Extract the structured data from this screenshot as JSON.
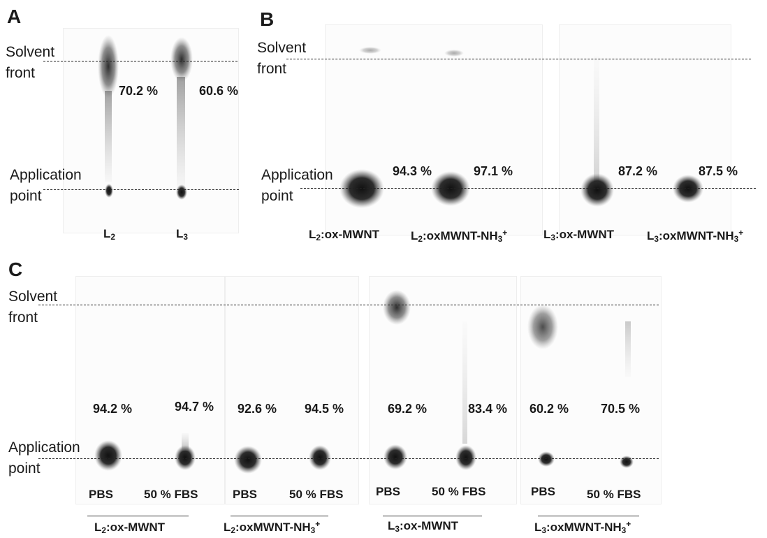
{
  "panels": {
    "A": {
      "letter": "A",
      "solvent": [
        "Solvent",
        "front"
      ],
      "application": [
        "Application",
        "point"
      ],
      "percents": [
        "70.2 %",
        "60.6 %"
      ],
      "lanes": [
        {
          "base": "L",
          "sub": "2",
          "rest": ""
        },
        {
          "base": "L",
          "sub": "3",
          "rest": ""
        }
      ]
    },
    "B": {
      "letter": "B",
      "solvent": [
        "Solvent",
        "front"
      ],
      "application": [
        "Application",
        "point"
      ],
      "percents": [
        "94.3 %",
        "97.1 %",
        "87.2 %",
        "87.5 %"
      ],
      "lanes": [
        {
          "base": "L",
          "sub": "2",
          "rest": ":ox-MWNT",
          "sup": ""
        },
        {
          "base": "L",
          "sub": "2",
          "rest": ":oxMWNT-NH",
          "sub2": "3",
          "sup": "+"
        },
        {
          "base": "L",
          "sub": "3",
          "rest": ":ox-MWNT",
          "sup": ""
        },
        {
          "base": "L",
          "sub": "3",
          "rest": ":oxMWNT-NH",
          "sub2": "3",
          "sup": "+"
        }
      ]
    },
    "C": {
      "letter": "C",
      "solvent": [
        "Solvent",
        "front"
      ],
      "application": [
        "Application",
        "point"
      ],
      "percents": [
        "94.2 %",
        "94.7 %",
        "92.6 %",
        "94.5 %",
        "69.2 %",
        "83.4 %",
        "60.2 %",
        "70.5 %"
      ],
      "conditions": [
        "PBS",
        "50 % FBS",
        "PBS",
        "50 % FBS",
        "PBS",
        "50 % FBS",
        "PBS",
        "50 % FBS"
      ],
      "groups": [
        {
          "base": "L",
          "sub": "2",
          "rest": ":ox-MWNT",
          "sup": ""
        },
        {
          "base": "L",
          "sub": "2",
          "rest": ":oxMWNT-NH",
          "sub2": "3",
          "sup": "+"
        },
        {
          "base": "L",
          "sub": "3",
          "rest": ":ox-MWNT",
          "sup": ""
        },
        {
          "base": "L",
          "sub": "3",
          "rest": ":oxMWNT-NH",
          "sub2": "3",
          "sup": "+"
        }
      ]
    }
  },
  "colors": {
    "spot": "#1c1c1c",
    "background": "#ffffff",
    "line": "#222222"
  }
}
